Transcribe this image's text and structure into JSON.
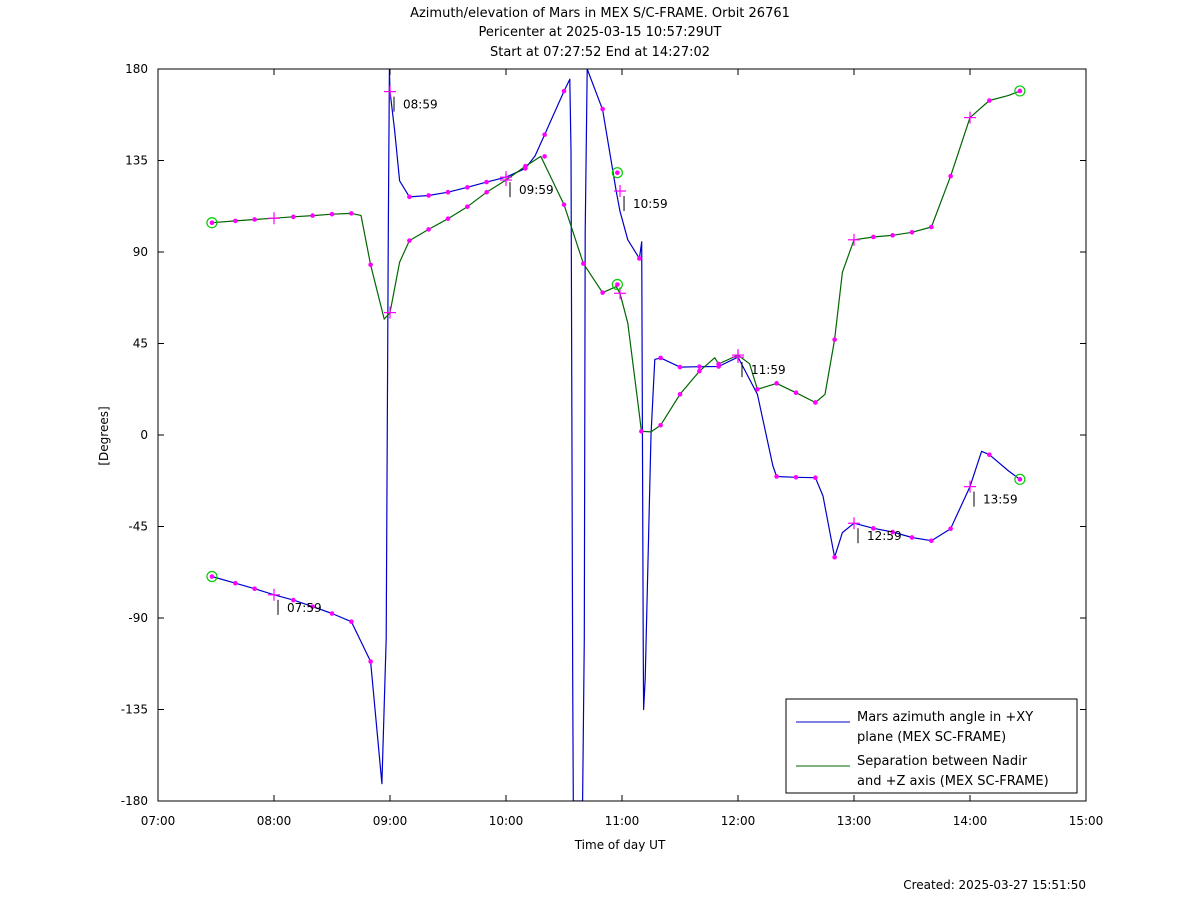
{
  "title_lines": [
    "Azimuth/elevation of Mars in MEX S/C-FRAME.  Orbit 26761",
    "Pericenter at 2025-03-15 10:57:29UT",
    "Start at 07:27:52 End at 14:27:02"
  ],
  "created": "Created: 2025-03-27 15:51:50",
  "chart_data": {
    "type": "line",
    "xlabel": "Time of day UT",
    "ylabel": "[Degrees]",
    "xlim": [
      7,
      15
    ],
    "ylim": [
      -180,
      180
    ],
    "xticks": [
      7,
      8,
      9,
      10,
      11,
      12,
      13,
      14,
      15
    ],
    "xtick_labels": [
      "07:00",
      "08:00",
      "09:00",
      "10:00",
      "11:00",
      "12:00",
      "13:00",
      "14:00",
      "15:00"
    ],
    "yticks": [
      180,
      135,
      90,
      45,
      0,
      -45,
      -90,
      -135,
      -180
    ],
    "ytick_labels": [
      "180",
      "135",
      "90",
      "45",
      "0",
      "-45",
      "-90",
      "-135",
      "-180"
    ],
    "grid": false,
    "legend_position": "bottom-right",
    "series": [
      {
        "name": "Mars azimuth angle in +XY plane (MEX SC-FRAME)",
        "legend_lines": [
          "Mars azimuth angle in +XY",
          "plane (MEX SC-FRAME)"
        ],
        "color": "#0000cc",
        "x": [
          7.465,
          7.667,
          7.833,
          8.0,
          8.167,
          8.333,
          8.5,
          8.667,
          8.833,
          8.93,
          8.967,
          8.985,
          8.995,
          9.0,
          9.04,
          9.083,
          9.167,
          9.333,
          9.5,
          9.667,
          9.833,
          10.0,
          10.167,
          10.25,
          10.333,
          10.5,
          10.55,
          10.56,
          10.567,
          10.575,
          10.58,
          10.6,
          10.66,
          10.675,
          10.683,
          10.7,
          10.833,
          10.95,
          10.983,
          11.05,
          11.15,
          11.17,
          11.183,
          11.186,
          11.2,
          11.25,
          11.283,
          11.333,
          11.5,
          11.667,
          11.833,
          12.0,
          12.167,
          12.3,
          12.333,
          12.5,
          12.667,
          12.733,
          12.833,
          12.9,
          13.0,
          13.167,
          13.333,
          13.5,
          13.667,
          13.833,
          14.0,
          14.1,
          14.167,
          14.333,
          14.43
        ],
        "y": [
          -69.6,
          -72.9,
          -75.6,
          -78.6,
          -81.2,
          -84.4,
          -87.8,
          -91.8,
          -111.4,
          -171.5,
          -100,
          100,
          180,
          168.9,
          150,
          125,
          117.1,
          117.8,
          119.4,
          121.8,
          124.4,
          126.8,
          131.1,
          137.2,
          147.7,
          169.1,
          175,
          140,
          20,
          -120,
          -180,
          -180,
          -180,
          -100,
          100,
          180,
          160,
          120.0,
          110,
          96,
          86.8,
          95,
          -100,
          -135,
          -120,
          0,
          37.2,
          37.9,
          33.4,
          33.6,
          33.7,
          38.3,
          20,
          -15,
          -20.4,
          -20.8,
          -21.0,
          -30,
          -60.1,
          -48,
          -43.4,
          -45.9,
          -47.7,
          -50.4,
          -52.0,
          -46.1,
          -25.4,
          -8,
          -9.7,
          -17.7,
          -21.8
        ]
      },
      {
        "name": "Separation between Nadir and +Z axis (MEX SC-FRAME)",
        "legend_lines": [
          "Separation between Nadir",
          "and +Z axis (MEX SC-FRAME)"
        ],
        "color": "#006600",
        "x": [
          7.465,
          7.667,
          7.833,
          8.0,
          8.167,
          8.333,
          8.5,
          8.667,
          8.75,
          8.833,
          8.95,
          9.0,
          9.083,
          9.167,
          9.333,
          9.5,
          9.667,
          9.833,
          10.0,
          10.167,
          10.3,
          10.5,
          10.667,
          10.833,
          10.95,
          10.983,
          11.05,
          11.15,
          11.167,
          11.25,
          11.333,
          11.5,
          11.667,
          11.8,
          11.833,
          12.0,
          12.1,
          12.167,
          12.333,
          12.5,
          12.667,
          12.75,
          12.833,
          12.9,
          13.0,
          13.167,
          13.333,
          13.5,
          13.667,
          13.833,
          14.0,
          14.167,
          14.333,
          14.43
        ],
        "y": [
          104.4,
          105.3,
          106.0,
          106.6,
          107.3,
          107.9,
          108.6,
          109.0,
          108,
          83.7,
          57,
          60.2,
          85,
          95.6,
          101.1,
          106.4,
          112.3,
          119.4,
          125.4,
          132.2,
          137,
          113.3,
          84.3,
          70.0,
          73,
          69.7,
          55,
          10,
          1.8,
          1.5,
          4.8,
          20.0,
          31.4,
          38,
          34.9,
          39.3,
          35,
          22.5,
          25.4,
          20.8,
          16.0,
          20,
          46.9,
          80,
          96.0,
          97.4,
          98.2,
          99.7,
          102.3,
          127.3,
          156.1,
          164.5,
          167,
          169.2
        ]
      }
    ],
    "annotations": [
      {
        "text": "07:59",
        "x": 8.0,
        "y": -78.6
      },
      {
        "text": "08:59",
        "x": 9.0,
        "y": 168.9
      },
      {
        "text": "09:59",
        "x": 10.0,
        "y": 126.8
      },
      {
        "text": "10:59",
        "x": 10.983,
        "y": 120.0
      },
      {
        "text": "11:59",
        "x": 12.0,
        "y": 38.3
      },
      {
        "text": "12:59",
        "x": 13.0,
        "y": -43.4
      },
      {
        "text": "13:59",
        "x": 14.0,
        "y": -25.4
      }
    ],
    "dot_markers": [
      {
        "series": 0,
        "x": [
          7.667,
          7.833,
          8.167,
          8.333,
          8.5,
          8.667,
          8.833,
          9.167,
          9.333,
          9.5,
          9.667,
          9.833,
          10.167,
          10.333,
          10.5,
          10.667,
          10.833,
          11.15,
          11.333,
          11.5,
          11.667,
          11.833,
          12.167,
          12.333,
          12.5,
          12.667,
          12.833,
          13.167,
          13.333,
          13.5,
          13.667,
          13.833,
          14.167
        ],
        "y": [
          -72.9,
          -75.6,
          -81.2,
          -84.4,
          -87.8,
          -91.8,
          -111.4,
          117.1,
          117.8,
          119.4,
          121.8,
          124.4,
          131.1,
          147.7,
          169.1,
          84.3,
          160.3,
          86.8,
          37.9,
          33.4,
          33.6,
          33.7,
          22.5,
          -20.4,
          -20.8,
          -21.0,
          -60.1,
          -45.9,
          -47.7,
          -50.4,
          -52.0,
          -46.1,
          -9.7
        ]
      },
      {
        "series": 1,
        "x": [
          7.667,
          7.833,
          8.167,
          8.333,
          8.5,
          8.667,
          8.833,
          9.167,
          9.333,
          9.5,
          9.667,
          9.833,
          10.167,
          10.333,
          10.5,
          10.833,
          11.167,
          11.333,
          11.5,
          11.667,
          11.833,
          12.333,
          12.5,
          12.667,
          12.833,
          13.167,
          13.333,
          13.5,
          13.667,
          13.833,
          14.167
        ],
        "y": [
          105.3,
          106.0,
          107.3,
          107.9,
          108.6,
          109.0,
          83.7,
          95.6,
          101.1,
          106.4,
          112.3,
          119.4,
          132.2,
          137.0,
          113.3,
          70.0,
          1.8,
          4.8,
          20.0,
          31.4,
          34.9,
          25.4,
          20.8,
          16.0,
          46.9,
          97.4,
          98.2,
          99.7,
          102.3,
          127.3,
          164.5
        ]
      }
    ],
    "cross_markers": [
      {
        "x": 8.0,
        "y": -78.6
      },
      {
        "x": 9.0,
        "y": 168.9
      },
      {
        "x": 10.0,
        "y": 126.8
      },
      {
        "x": 10.983,
        "y": 120.0
      },
      {
        "x": 12.0,
        "y": 38.3
      },
      {
        "x": 13.0,
        "y": -43.4
      },
      {
        "x": 14.0,
        "y": -25.4
      },
      {
        "x": 8.0,
        "y": 106.6
      },
      {
        "x": 9.0,
        "y": 60.2
      },
      {
        "x": 10.0,
        "y": 125.4
      },
      {
        "x": 10.983,
        "y": 69.7
      },
      {
        "x": 12.0,
        "y": 39.3
      },
      {
        "x": 13.0,
        "y": 96.0
      },
      {
        "x": 14.0,
        "y": 156.1
      }
    ],
    "circle_markers": [
      {
        "x": 7.465,
        "y": -69.6
      },
      {
        "x": 7.465,
        "y": 104.4
      },
      {
        "x": 10.96,
        "y": 129
      },
      {
        "x": 10.96,
        "y": 74
      },
      {
        "x": 14.43,
        "y": -21.8
      },
      {
        "x": 14.43,
        "y": 169.2
      }
    ]
  }
}
